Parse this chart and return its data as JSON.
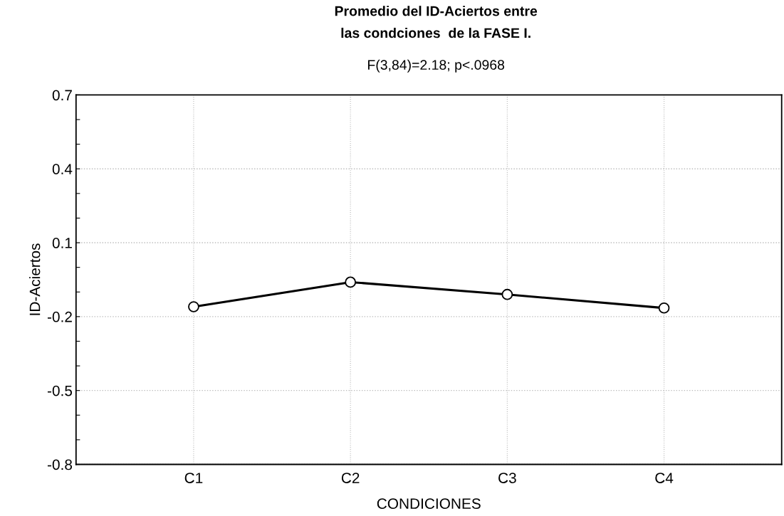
{
  "chart_data": {
    "type": "line",
    "title": "Promedio del ID-Aciertos entre\nlas condciones  de la FASE I.",
    "subtitle": "F(3,84)=2.18; p<.0968",
    "xlabel": "CONDICIONES",
    "ylabel": "ID-Aciertos",
    "categories": [
      "C1",
      "C2",
      "C3",
      "C4"
    ],
    "series": [
      {
        "color": "#000000",
        "values": [
          -0.16,
          -0.06,
          -0.11,
          -0.165
        ]
      }
    ],
    "ylim": [
      -0.8,
      0.7
    ],
    "yticks": [
      -0.8,
      {
        "value": -0.7,
        "label": null
      },
      {
        "value": -0.6,
        "label": null
      },
      -0.5,
      {
        "value": -0.4,
        "label": null
      },
      {
        "value": -0.3,
        "label": null
      },
      -0.2,
      {
        "value": -0.1,
        "label": null
      },
      {
        "value": 0.0,
        "label": null
      },
      0.1,
      {
        "value": 0.2,
        "label": null
      },
      {
        "value": 0.3,
        "label": null
      },
      0.4,
      {
        "value": 0.5,
        "label": null
      },
      {
        "value": 0.6,
        "label": null
      },
      0.7
    ],
    "grid": true,
    "marker": "circle",
    "line_style": "solid"
  }
}
